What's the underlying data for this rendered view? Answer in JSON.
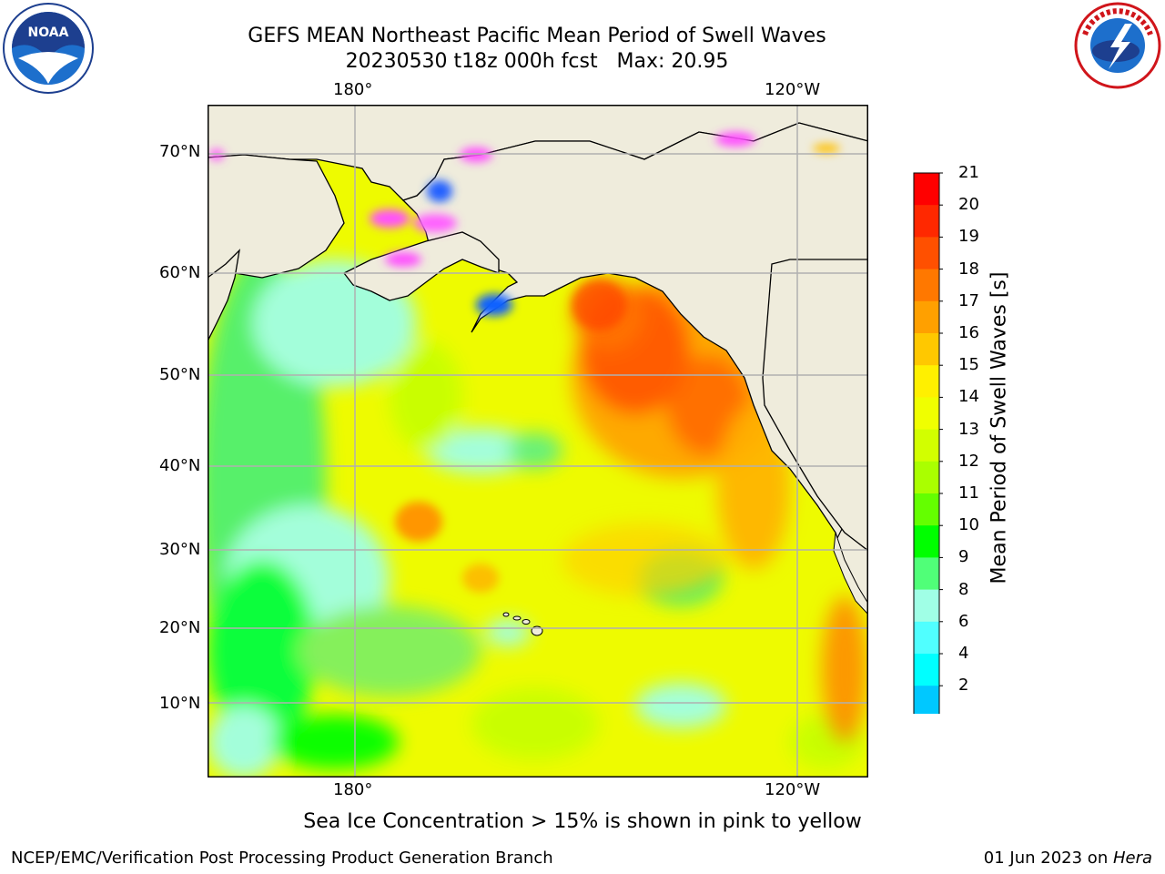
{
  "title": {
    "line1": "GEFS MEAN Northeast Pacific Mean Period of Swell Waves",
    "line2": "20230530 t18z 000h fcst   Max: 20.95"
  },
  "logos": {
    "left": "noara-logo",
    "left_text": "NOAA",
    "right": "nws-logo",
    "right_text": "NATIONAL WEATHER SERVICE"
  },
  "map": {
    "lon_labels": [
      "180°",
      "120°W"
    ],
    "lat_labels": [
      "70°N",
      "60°N",
      "50°N",
      "40°N",
      "30°N",
      "20°N",
      "10°N"
    ],
    "colors": {
      "land": "#efecdc",
      "ocean_base": "#ffff00",
      "grid": "#b0b0b0"
    }
  },
  "colorbar": {
    "label": "Mean Period of Swell Waves [s]",
    "ticks": [
      "21",
      "20",
      "19",
      "18",
      "17",
      "16",
      "15",
      "14",
      "13",
      "12",
      "11",
      "10",
      "9",
      "8",
      "6",
      "4",
      "2"
    ],
    "colors": [
      "#ff0000",
      "#ff2800",
      "#ff5000",
      "#ff7800",
      "#ffa000",
      "#ffc800",
      "#fff000",
      "#f0ff00",
      "#d2ff00",
      "#aaff00",
      "#64ff00",
      "#00ff00",
      "#50ff78",
      "#a0ffe6",
      "#50ffff",
      "#00ffff",
      "#00c8ff",
      "#0064ff"
    ],
    "extend_color": "#0000ff"
  },
  "note": "Sea Ice Concentration > 15% is shown in pink to yellow",
  "credit_left": "NCEP/EMC/Verification Post Processing Product Generation Branch",
  "credit_date": "01 Jun 2023 on ",
  "credit_system": "Hera"
}
